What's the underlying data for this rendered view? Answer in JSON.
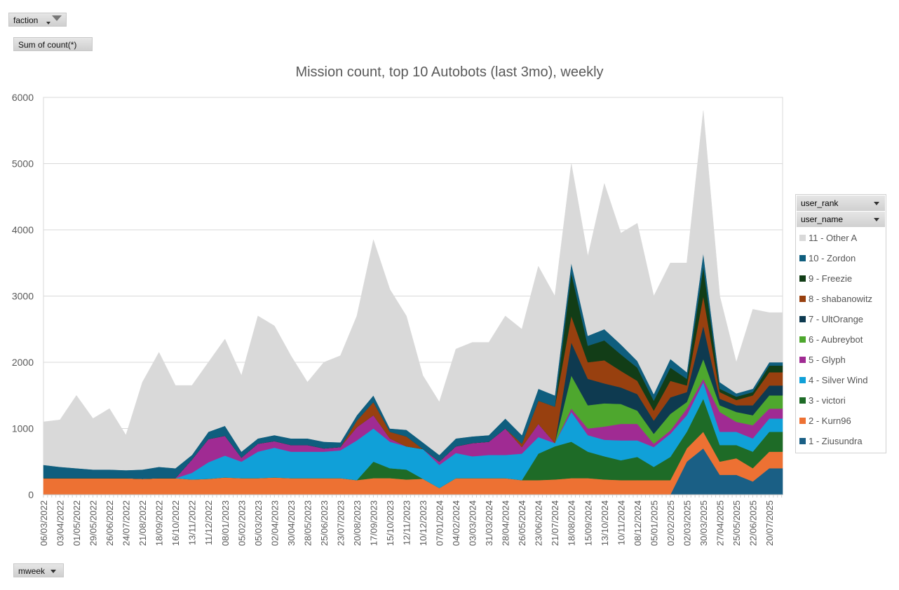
{
  "filters": {
    "faction_label": "faction",
    "values_label": "Sum of count(*)",
    "axis_field_label": "mweek"
  },
  "legend": {
    "field1": "user_rank",
    "field2": "user_name"
  },
  "chart_data": {
    "type": "area",
    "stacked": true,
    "title": "Mission count, top 10 Autobots (last 3mo), weekly",
    "xlabel": "",
    "ylabel": "",
    "ylim": [
      0,
      6000
    ],
    "yticks": [
      0,
      1000,
      2000,
      3000,
      4000,
      5000,
      6000
    ],
    "grid": true,
    "legend_position": "right",
    "categories": [
      "06/03/2022",
      "03/04/2022",
      "01/05/2022",
      "29/05/2022",
      "26/06/2022",
      "24/07/2022",
      "21/08/2022",
      "18/09/2022",
      "16/10/2022",
      "13/11/2022",
      "11/12/2022",
      "08/01/2023",
      "05/02/2023",
      "05/03/2023",
      "02/04/2023",
      "30/04/2023",
      "28/05/2023",
      "25/06/2023",
      "23/07/2023",
      "20/08/2023",
      "17/09/2023",
      "15/10/2023",
      "12/11/2023",
      "10/12/2023",
      "07/01/2024",
      "04/02/2024",
      "03/03/2024",
      "31/03/2024",
      "28/04/2024",
      "26/05/2024",
      "23/06/2024",
      "21/07/2024",
      "18/08/2024",
      "15/09/2024",
      "13/10/2024",
      "10/11/2024",
      "08/12/2024",
      "05/01/2025",
      "02/02/2025",
      "02/03/2025",
      "30/03/2025",
      "27/04/2025",
      "25/05/2025",
      "22/06/2025",
      "20/07/2025"
    ],
    "stack_total": [
      1100,
      1130,
      1500,
      1150,
      1300,
      900,
      1700,
      2150,
      1650,
      1650,
      2000,
      2350,
      1800,
      2700,
      2550,
      2100,
      1700,
      2000,
      2100,
      2700,
      3850,
      3100,
      2700,
      1800,
      1400,
      2200,
      2300,
      2300,
      2700,
      2500,
      3450,
      3000,
      5000,
      3600,
      4700,
      3950,
      4100,
      3000,
      3500,
      3500,
      5800,
      3000,
      2000,
      2800,
      2750
    ],
    "series": [
      {
        "name": "1 - Ziusundra",
        "color": "#1a5f85",
        "values": [
          0,
          0,
          0,
          0,
          0,
          0,
          0,
          0,
          0,
          0,
          0,
          0,
          0,
          0,
          0,
          0,
          0,
          0,
          0,
          0,
          0,
          0,
          0,
          0,
          0,
          0,
          0,
          0,
          0,
          0,
          0,
          0,
          0,
          0,
          0,
          0,
          0,
          0,
          0,
          500,
          700,
          300,
          300,
          200,
          400
        ]
      },
      {
        "name": "2 - Kurn96",
        "color": "#ed7133",
        "values": [
          250,
          250,
          250,
          250,
          250,
          250,
          240,
          250,
          250,
          230,
          240,
          260,
          250,
          250,
          260,
          250,
          250,
          250,
          250,
          220,
          250,
          250,
          230,
          240,
          100,
          250,
          250,
          250,
          250,
          220,
          220,
          230,
          250,
          250,
          230,
          220,
          220,
          220,
          220,
          200,
          250,
          200,
          250,
          200,
          250
        ]
      },
      {
        "name": "3 - victori",
        "color": "#1e6b27",
        "values": [
          0,
          0,
          0,
          0,
          0,
          0,
          0,
          0,
          0,
          0,
          0,
          0,
          0,
          0,
          0,
          0,
          0,
          0,
          0,
          0,
          250,
          150,
          150,
          0,
          0,
          0,
          0,
          0,
          0,
          0,
          400,
          500,
          550,
          400,
          350,
          300,
          350,
          200,
          350,
          250,
          500,
          250,
          200,
          250,
          300
        ]
      },
      {
        "name": "4 - Silver Wind",
        "color": "#10a0d8",
        "values": [
          0,
          0,
          0,
          0,
          0,
          0,
          0,
          0,
          0,
          100,
          250,
          330,
          250,
          400,
          450,
          400,
          400,
          400,
          420,
          600,
          500,
          400,
          350,
          450,
          350,
          380,
          330,
          350,
          350,
          400,
          250,
          50,
          450,
          250,
          250,
          300,
          250,
          300,
          350,
          250,
          250,
          200,
          200,
          200,
          200
        ]
      },
      {
        "name": "5 - Glyph",
        "color": "#a02b93",
        "values": [
          0,
          0,
          0,
          0,
          0,
          0,
          0,
          0,
          0,
          200,
          350,
          300,
          60,
          120,
          100,
          100,
          100,
          50,
          50,
          200,
          200,
          50,
          0,
          0,
          50,
          100,
          200,
          200,
          400,
          100,
          200,
          0,
          50,
          100,
          200,
          250,
          250,
          50,
          50,
          100,
          50,
          300,
          150,
          200,
          150
        ]
      },
      {
        "name": "6 - Aubreybot",
        "color": "#4ea72e",
        "values": [
          0,
          0,
          0,
          0,
          0,
          0,
          0,
          0,
          0,
          0,
          0,
          0,
          0,
          0,
          0,
          0,
          0,
          0,
          0,
          0,
          0,
          0,
          0,
          0,
          0,
          0,
          0,
          0,
          0,
          0,
          0,
          0,
          500,
          350,
          350,
          300,
          200,
          150,
          250,
          100,
          300,
          100,
          150,
          150,
          200
        ]
      },
      {
        "name": "7 - UltOrange",
        "color": "#0e3a50",
        "values": [
          0,
          0,
          0,
          0,
          0,
          0,
          0,
          0,
          0,
          0,
          0,
          0,
          0,
          0,
          0,
          0,
          0,
          0,
          0,
          0,
          0,
          0,
          0,
          0,
          0,
          0,
          0,
          0,
          0,
          0,
          0,
          0,
          500,
          400,
          300,
          250,
          250,
          200,
          250,
          150,
          500,
          100,
          100,
          150,
          150
        ]
      },
      {
        "name": "8 - shabanowitz",
        "color": "#98400f",
        "values": [
          0,
          0,
          0,
          0,
          0,
          0,
          0,
          0,
          0,
          0,
          0,
          0,
          0,
          0,
          0,
          0,
          0,
          0,
          0,
          100,
          200,
          100,
          150,
          0,
          0,
          0,
          0,
          0,
          0,
          50,
          350,
          550,
          400,
          250,
          350,
          250,
          200,
          150,
          250,
          100,
          450,
          100,
          80,
          150,
          200
        ]
      },
      {
        "name": "9 - Freezie",
        "color": "#123d17",
        "values": [
          0,
          0,
          0,
          0,
          0,
          0,
          0,
          0,
          0,
          0,
          0,
          0,
          0,
          0,
          0,
          0,
          0,
          0,
          0,
          0,
          0,
          0,
          0,
          0,
          0,
          0,
          0,
          0,
          0,
          0,
          0,
          0,
          650,
          250,
          300,
          250,
          200,
          150,
          200,
          100,
          450,
          50,
          50,
          50,
          100
        ]
      },
      {
        "name": "10 - Zordon",
        "color": "#0f5e7e",
        "values": [
          200,
          170,
          150,
          130,
          130,
          120,
          140,
          170,
          150,
          70,
          110,
          150,
          90,
          80,
          90,
          100,
          100,
          100,
          70,
          80,
          100,
          50,
          100,
          100,
          100,
          120,
          100,
          100,
          150,
          130,
          180,
          170,
          150,
          150,
          170,
          150,
          100,
          100,
          130,
          100,
          200,
          100,
          50,
          50,
          50
        ]
      },
      {
        "name": "11 - Other A",
        "color": "#d9d9d9",
        "values": "remainder_of_stack_total"
      }
    ]
  }
}
